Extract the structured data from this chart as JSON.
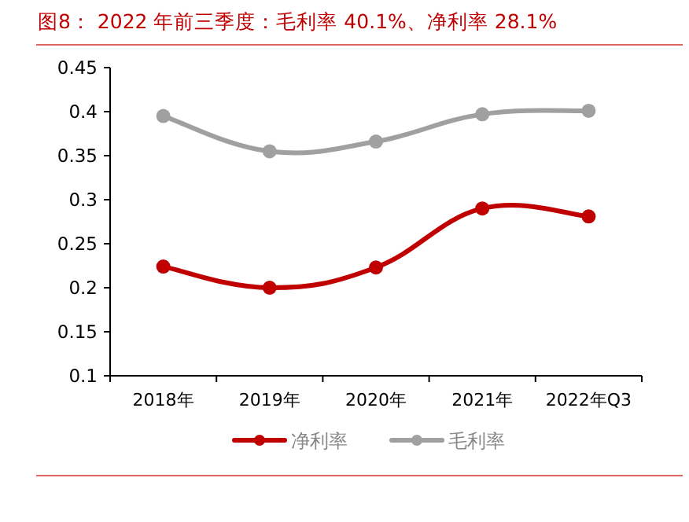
{
  "chart_data": {
    "type": "line",
    "title": "图8：  2022 年前三季度：毛利率 40.1%、净利率 28.1%",
    "categories": [
      "2018年",
      "2019年",
      "2020年",
      "2021年",
      "2022年Q3"
    ],
    "series": [
      {
        "name": "净利率",
        "color": "#c00000",
        "values": [
          0.224,
          0.2,
          0.223,
          0.29,
          0.281
        ]
      },
      {
        "name": "毛利率",
        "color": "#a0a0a0",
        "values": [
          0.395,
          0.355,
          0.366,
          0.397,
          0.401
        ]
      }
    ],
    "ylim": [
      0.1,
      0.45
    ],
    "yticks": [
      0.1,
      0.15,
      0.2,
      0.25,
      0.3,
      0.35,
      0.4,
      0.45
    ],
    "grid": false,
    "legend": "bottom",
    "marker": "circle",
    "line_style": "solid"
  }
}
